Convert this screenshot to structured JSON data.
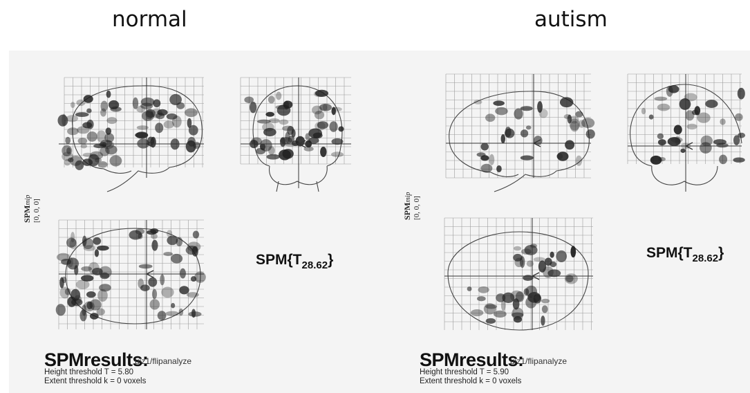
{
  "headings": {
    "left": "normal",
    "right": "autism"
  },
  "panels": [
    {
      "id": "normal",
      "mip_label": "SPM",
      "mip_sub": "mip",
      "mip_coords": "[0, 0, 0]",
      "stat_prefix": "SPM{T",
      "stat_df": "28.62",
      "stat_suffix": "}",
      "results_title": "SPMresults:",
      "results_path": "uiz1/flipanalyze",
      "height_threshold": "Height threshold T = 5.80",
      "extent_threshold": "Extent threshold k = 0 voxels"
    },
    {
      "id": "autism",
      "mip_label": "SPM",
      "mip_sub": "mip",
      "mip_coords": "[0, 0, 0]",
      "stat_prefix": "SPM{T",
      "stat_df": "28.62",
      "stat_suffix": "}",
      "results_title": "SPMresults:",
      "results_path": "uiz1/flipanalyze",
      "height_threshold": "Height threshold T = 5.90",
      "extent_threshold": "Extent threshold k = 0 voxels"
    }
  ],
  "colors": {
    "scan_background": "#f4f4f4",
    "grid": "#9a9a9a",
    "outline": "#444444",
    "activation": "#202020"
  }
}
